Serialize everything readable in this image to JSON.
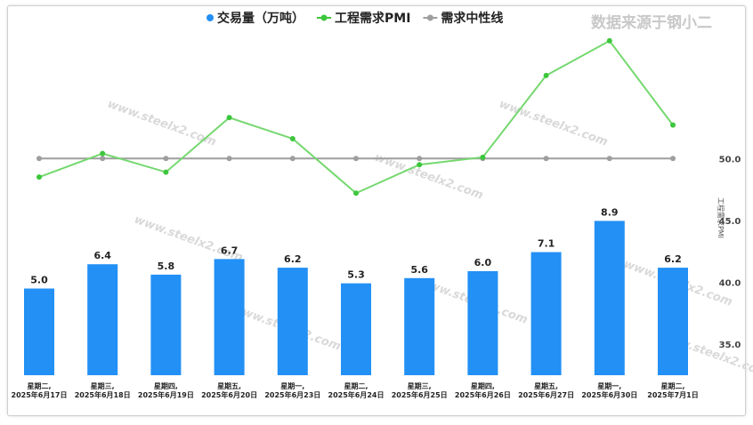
{
  "watermark": "数据来源于钢小二",
  "background_watermark": "www.steelx2.com",
  "colors": {
    "bar": "#2290f5",
    "pmi": "#74d86e",
    "pmi_point": "#3cc63c",
    "neutral": "#9e9e9e"
  },
  "chart_data": {
    "type": "bar+line",
    "legend": [
      {
        "label": "交易量（万吨）",
        "color": "#2290f5"
      },
      {
        "label": "工程需求PMI",
        "color": "#3cc63c"
      },
      {
        "label": "需求中性线",
        "color": "#9e9e9e"
      }
    ],
    "categories": [
      [
        "星期二,",
        "2025年6月17日"
      ],
      [
        "星期三,",
        "2025年6月18日"
      ],
      [
        "星期四,",
        "2025年6月19日"
      ],
      [
        "星期五,",
        "2025年6月20日"
      ],
      [
        "星期一,",
        "2025年6月23日"
      ],
      [
        "星期二,",
        "2025年6月24日"
      ],
      [
        "星期三,",
        "2025年6月25日"
      ],
      [
        "星期四,",
        "2025年6月26日"
      ],
      [
        "星期五,",
        "2025年6月27日"
      ],
      [
        "星期一,",
        "2025年6月30日"
      ],
      [
        "星期二,",
        "2025年7月1日"
      ]
    ],
    "series": [
      {
        "name": "交易量（万吨）",
        "type": "bar",
        "axis": "left",
        "values": [
          5.0,
          6.4,
          5.8,
          6.7,
          6.2,
          5.3,
          5.6,
          6.0,
          7.1,
          8.9,
          6.2
        ],
        "labels": [
          "5.0",
          "6.4",
          "5.8",
          "6.7",
          "6.2",
          "5.3",
          "5.6",
          "6.0",
          "7.1",
          "8.9",
          "6.2"
        ]
      },
      {
        "name": "工程需求PMI",
        "type": "line",
        "axis": "right",
        "values": [
          48.5,
          50.4,
          48.9,
          53.3,
          51.6,
          47.2,
          49.5,
          50.1,
          56.7,
          59.5,
          52.7
        ]
      },
      {
        "name": "需求中性线",
        "type": "line",
        "axis": "right",
        "values": [
          50,
          50,
          50,
          50,
          50,
          50,
          50,
          50,
          50,
          50,
          50
        ]
      }
    ],
    "left_axis": {
      "range": [
        0,
        20
      ]
    },
    "right_axis": {
      "range": [
        32.5,
        60.5
      ],
      "ticks": [
        "35.0",
        "40.0",
        "45.0",
        "50.0"
      ],
      "label": "工程需求PMI"
    }
  }
}
